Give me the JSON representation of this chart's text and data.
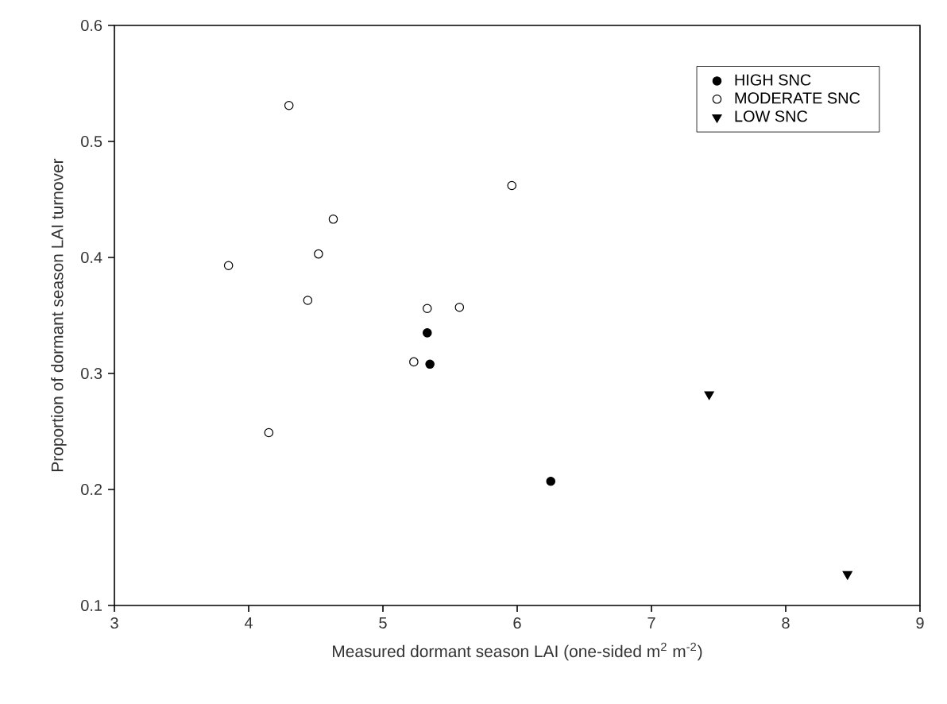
{
  "chart_data": {
    "type": "scatter",
    "xlabel": "Measured dormant season LAI (one-sided m$^{2}$ m$^{-2}$)",
    "ylabel": "Proportion of dormant season LAI turnover",
    "xlim": [
      3,
      9
    ],
    "xticks": [
      3,
      4,
      5,
      6,
      7,
      8,
      9
    ],
    "ylim": [
      0.1,
      0.6
    ],
    "yticks": [
      0.1,
      0.2,
      0.3,
      0.4,
      0.5,
      0.6
    ],
    "grid": false,
    "legend": "top right",
    "series": [
      {
        "name": "HIGH SNC",
        "color": "#000000",
        "marker": "circle",
        "x": [
          5.33,
          5.35,
          6.25
        ],
        "values": [
          0.335,
          0.308,
          0.207
        ]
      },
      {
        "name": "MODERATE SNC",
        "color": "#ffffff",
        "marker": "circle",
        "x": [
          4.3,
          5.96,
          4.63,
          4.52,
          3.85,
          4.44,
          5.33,
          5.57,
          5.23,
          4.15
        ],
        "values": [
          0.531,
          0.462,
          0.433,
          0.403,
          0.393,
          0.363,
          0.356,
          0.357,
          0.31,
          0.249
        ]
      },
      {
        "name": "LOW SNC",
        "color": "#000000",
        "marker": "triangle",
        "x": [
          7.43,
          8.46
        ],
        "values": [
          0.282,
          0.127
        ]
      }
    ]
  }
}
